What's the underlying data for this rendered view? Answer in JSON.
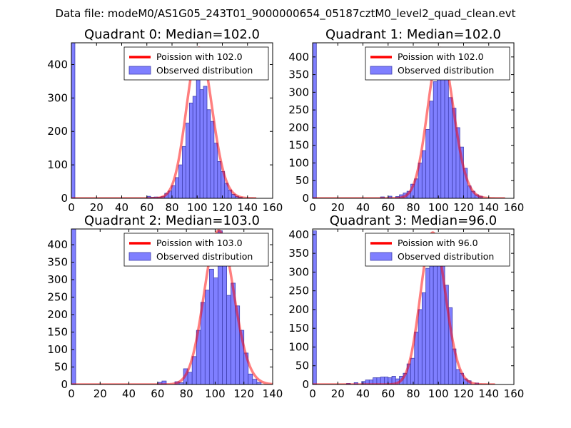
{
  "chart_data": {
    "suptitle": "Data file: modeM0/AS1G05_243T01_9000000654_05187cztM0_level2_quad_clean.evt",
    "panels": [
      {
        "type": "bar",
        "title": "Quadrant 0: Median=102.0",
        "xlim": [
          0,
          160
        ],
        "ylim": [
          0,
          465
        ],
        "xticks": [
          0,
          20,
          40,
          60,
          80,
          100,
          120,
          140,
          160
        ],
        "yticks": [
          0,
          100,
          200,
          300,
          400
        ],
        "bin_width": 2.8,
        "hist_color": "#7f7fff",
        "bars": [
          {
            "x": 0,
            "h": 465
          },
          {
            "x": 60.2,
            "h": 6
          },
          {
            "x": 63,
            "h": 3
          },
          {
            "x": 65.8,
            "h": 4
          },
          {
            "x": 68.6,
            "h": 3
          },
          {
            "x": 71.4,
            "h": 5
          },
          {
            "x": 74.2,
            "h": 15
          },
          {
            "x": 77,
            "h": 22
          },
          {
            "x": 79.8,
            "h": 38
          },
          {
            "x": 82.6,
            "h": 62
          },
          {
            "x": 85.4,
            "h": 100
          },
          {
            "x": 88.2,
            "h": 155
          },
          {
            "x": 91,
            "h": 225
          },
          {
            "x": 93.8,
            "h": 285
          },
          {
            "x": 96.6,
            "h": 305
          },
          {
            "x": 99.4,
            "h": 435
          },
          {
            "x": 102.2,
            "h": 325
          },
          {
            "x": 105,
            "h": 335
          },
          {
            "x": 107.8,
            "h": 265
          },
          {
            "x": 110.6,
            "h": 230
          },
          {
            "x": 113.4,
            "h": 165
          },
          {
            "x": 116.2,
            "h": 110
          },
          {
            "x": 119,
            "h": 80
          },
          {
            "x": 121.8,
            "h": 45
          },
          {
            "x": 124.6,
            "h": 25
          },
          {
            "x": 127.4,
            "h": 12
          },
          {
            "x": 130.2,
            "h": 6
          },
          {
            "x": 133,
            "h": 3
          }
        ],
        "poisson": {
          "label": "Poission with 102.0",
          "mean": 102.0,
          "peak": 450,
          "x_range": [
            0,
            147
          ]
        },
        "legend": {
          "hist_label": "Observed distribution",
          "position": "upper right"
        }
      },
      {
        "type": "bar",
        "title": "Quadrant 1: Median=102.0",
        "xlim": [
          0,
          160
        ],
        "ylim": [
          0,
          440
        ],
        "xticks": [
          0,
          20,
          40,
          60,
          80,
          100,
          120,
          140,
          160
        ],
        "yticks": [
          0,
          50,
          100,
          150,
          200,
          250,
          300,
          350,
          400
        ],
        "bin_width": 3.0,
        "hist_color": "#7f7fff",
        "bars": [
          {
            "x": 0,
            "h": 440
          },
          {
            "x": 54,
            "h": 4
          },
          {
            "x": 60,
            "h": 6
          },
          {
            "x": 66,
            "h": 5
          },
          {
            "x": 69,
            "h": 10
          },
          {
            "x": 72,
            "h": 15
          },
          {
            "x": 75,
            "h": 20
          },
          {
            "x": 78,
            "h": 40
          },
          {
            "x": 81,
            "h": 55
          },
          {
            "x": 84,
            "h": 100
          },
          {
            "x": 87,
            "h": 135
          },
          {
            "x": 90,
            "h": 195
          },
          {
            "x": 93,
            "h": 275
          },
          {
            "x": 96,
            "h": 330
          },
          {
            "x": 99,
            "h": 400
          },
          {
            "x": 102,
            "h": 425
          },
          {
            "x": 105,
            "h": 355
          },
          {
            "x": 108,
            "h": 285
          },
          {
            "x": 111,
            "h": 255
          },
          {
            "x": 114,
            "h": 200
          },
          {
            "x": 117,
            "h": 145
          },
          {
            "x": 120,
            "h": 85
          },
          {
            "x": 123,
            "h": 35
          },
          {
            "x": 126,
            "h": 20
          },
          {
            "x": 129,
            "h": 10
          },
          {
            "x": 132,
            "h": 6
          }
        ],
        "poisson": {
          "label": "Poission with 102.0",
          "mean": 102.0,
          "peak": 425,
          "x_range": [
            0,
            153
          ]
        },
        "legend": {
          "hist_label": "Observed distribution",
          "position": "upper right"
        }
      },
      {
        "type": "bar",
        "title": "Quadrant 2: Median=103.0",
        "xlim": [
          0,
          140
        ],
        "ylim": [
          0,
          445
        ],
        "xticks": [
          0,
          20,
          40,
          60,
          80,
          100,
          120,
          140
        ],
        "yticks": [
          0,
          50,
          100,
          150,
          200,
          250,
          300,
          350,
          400
        ],
        "bin_width": 3.0,
        "hist_color": "#7f7fff",
        "bars": [
          {
            "x": 0,
            "h": 445
          },
          {
            "x": 60,
            "h": 6
          },
          {
            "x": 63,
            "h": 10
          },
          {
            "x": 72,
            "h": 8
          },
          {
            "x": 75,
            "h": 5
          },
          {
            "x": 78,
            "h": 45
          },
          {
            "x": 81,
            "h": 35
          },
          {
            "x": 84,
            "h": 80
          },
          {
            "x": 87,
            "h": 155
          },
          {
            "x": 90,
            "h": 235
          },
          {
            "x": 93,
            "h": 270
          },
          {
            "x": 96,
            "h": 330
          },
          {
            "x": 99,
            "h": 305
          },
          {
            "x": 102,
            "h": 440
          },
          {
            "x": 105,
            "h": 345
          },
          {
            "x": 108,
            "h": 255
          },
          {
            "x": 111,
            "h": 290
          },
          {
            "x": 114,
            "h": 225
          },
          {
            "x": 117,
            "h": 155
          },
          {
            "x": 120,
            "h": 90
          },
          {
            "x": 123,
            "h": 30
          },
          {
            "x": 126,
            "h": 15
          },
          {
            "x": 129,
            "h": 6
          }
        ],
        "poisson": {
          "label": "Poission with 103.0",
          "mean": 103.0,
          "peak": 440,
          "x_range": [
            0,
            140
          ]
        },
        "legend": {
          "hist_label": "Observed distribution",
          "position": "upper right"
        }
      },
      {
        "type": "bar",
        "title": "Quadrant 3: Median=96.0",
        "xlim": [
          0,
          160
        ],
        "ylim": [
          0,
          415
        ],
        "xticks": [
          0,
          20,
          40,
          60,
          80,
          100,
          120,
          140,
          160
        ],
        "yticks": [
          0,
          50,
          100,
          150,
          200,
          250,
          300,
          350,
          400
        ],
        "bin_width": 3.0,
        "hist_color": "#7f7fff",
        "bars": [
          {
            "x": 0,
            "h": 410
          },
          {
            "x": 27,
            "h": 3
          },
          {
            "x": 33,
            "h": 5
          },
          {
            "x": 39,
            "h": 8
          },
          {
            "x": 42,
            "h": 12
          },
          {
            "x": 45,
            "h": 12
          },
          {
            "x": 48,
            "h": 18
          },
          {
            "x": 51,
            "h": 18
          },
          {
            "x": 54,
            "h": 20
          },
          {
            "x": 57,
            "h": 20
          },
          {
            "x": 60,
            "h": 18
          },
          {
            "x": 63,
            "h": 22
          },
          {
            "x": 66,
            "h": 15
          },
          {
            "x": 69,
            "h": 22
          },
          {
            "x": 72,
            "h": 30
          },
          {
            "x": 75,
            "h": 55
          },
          {
            "x": 78,
            "h": 70
          },
          {
            "x": 81,
            "h": 140
          },
          {
            "x": 84,
            "h": 200
          },
          {
            "x": 87,
            "h": 245
          },
          {
            "x": 90,
            "h": 310
          },
          {
            "x": 93,
            "h": 395
          },
          {
            "x": 96,
            "h": 355
          },
          {
            "x": 99,
            "h": 325
          },
          {
            "x": 102,
            "h": 340
          },
          {
            "x": 105,
            "h": 265
          },
          {
            "x": 108,
            "h": 205
          },
          {
            "x": 111,
            "h": 95
          },
          {
            "x": 114,
            "h": 40
          },
          {
            "x": 117,
            "h": 30
          },
          {
            "x": 120,
            "h": 15
          },
          {
            "x": 123,
            "h": 10
          },
          {
            "x": 129,
            "h": 4
          }
        ],
        "poisson": {
          "label": "Poission with 96.0",
          "mean": 96.0,
          "peak": 405,
          "x_range": [
            0,
            145
          ]
        },
        "legend": {
          "hist_label": "Observed distribution",
          "position": "upper right"
        }
      }
    ],
    "colors": {
      "hist_fill": "#7f7fff",
      "hist_edge": "#3f3fb0",
      "poisson_line": "#ff0000",
      "axes": "#000000"
    }
  }
}
